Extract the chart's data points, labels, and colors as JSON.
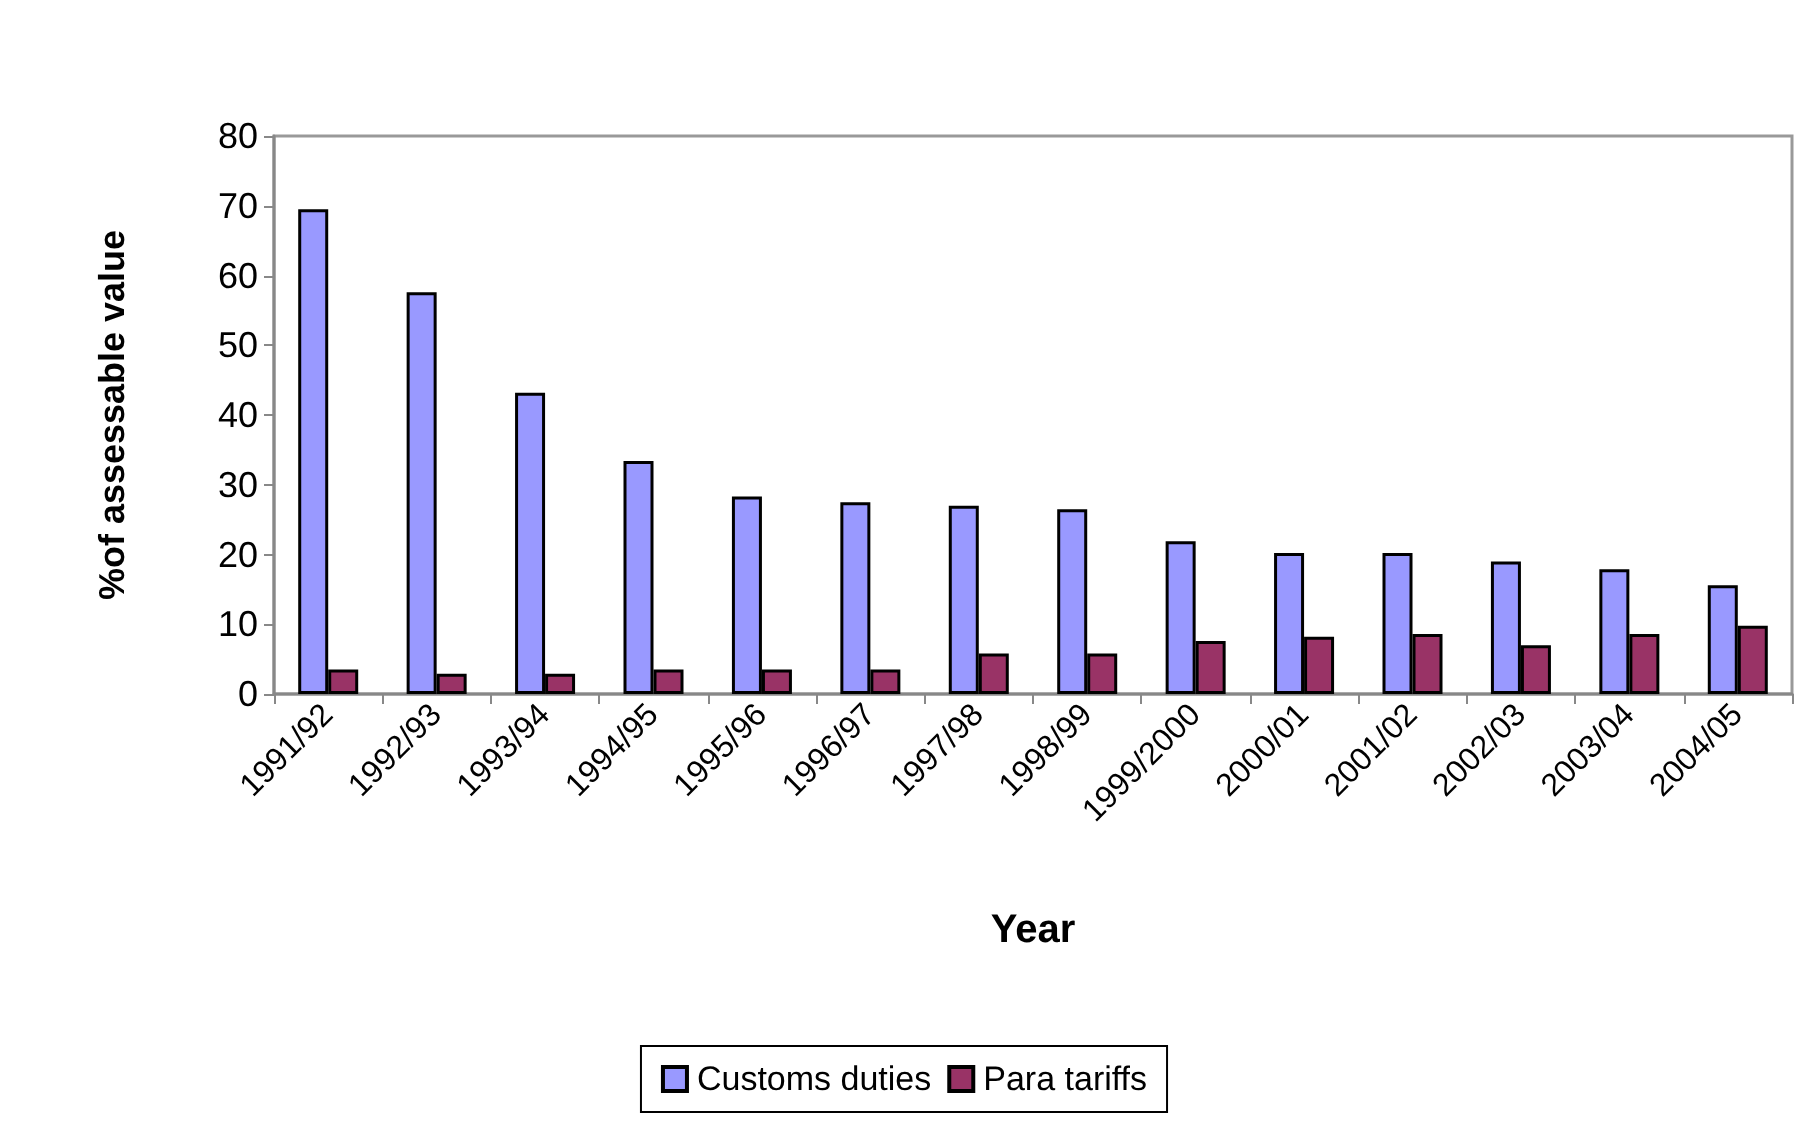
{
  "chart_data": {
    "type": "bar",
    "xlabel": "Year",
    "ylabel": "%of assessable value",
    "categories": [
      "1991/92",
      "1992/93",
      "1993/94",
      "1994/95",
      "1995/96",
      "1996/97",
      "1997/98",
      "1998/99",
      "1999/2000",
      "2000/01",
      "2001/02",
      "2002/03",
      "2003/04",
      "2004/05"
    ],
    "series": [
      {
        "name": "Customs duties",
        "color": "#9999ff",
        "values": [
          69.5,
          57.6,
          43.2,
          33.4,
          28.3,
          27.5,
          27.0,
          26.5,
          21.9,
          20.2,
          20.2,
          19.0,
          17.9,
          15.6
        ]
      },
      {
        "name": "Para tariffs",
        "color": "#993366",
        "values": [
          3.5,
          2.9,
          2.9,
          3.5,
          3.5,
          3.5,
          5.8,
          5.8,
          7.6,
          8.2,
          8.6,
          7.0,
          8.6,
          9.8
        ]
      }
    ],
    "ylim": [
      0,
      80
    ],
    "yticks": [
      0,
      10,
      20,
      30,
      40,
      50,
      60,
      70,
      80
    ],
    "grid": false,
    "legend": "bottom"
  }
}
